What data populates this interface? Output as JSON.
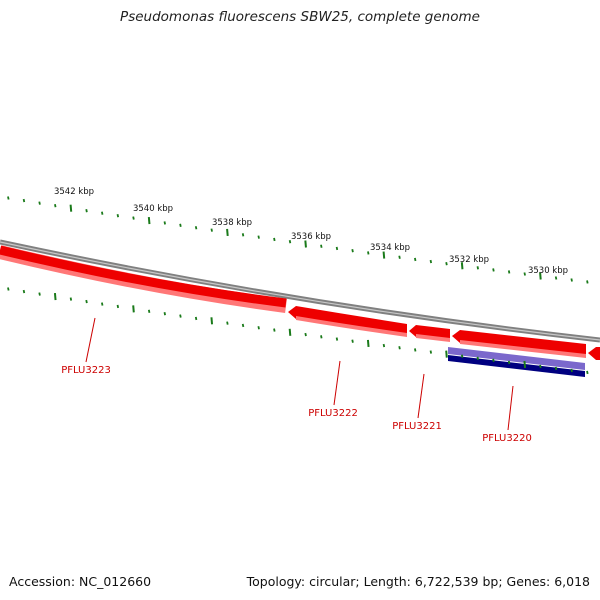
{
  "header": {
    "title": "Pseudomonas fluorescens SBW25, complete genome"
  },
  "footer": {
    "accession": "Accession: NC_012660",
    "topology": "Topology: circular; Length: 6,722,539 bp; Genes: 6,018"
  },
  "ruler": {
    "labels": [
      "3542 kbp",
      "3540 kbp",
      "3538 kbp",
      "3536 kbp",
      "3534 kbp",
      "3532 kbp",
      "3530 kbp"
    ]
  },
  "genes": [
    {
      "name": "PFLU3223"
    },
    {
      "name": "PFLU3222"
    },
    {
      "name": "PFLU3221"
    },
    {
      "name": "PFLU3220"
    }
  ],
  "colors": {
    "gene": "#ee0000",
    "gene_light": "#ff7777",
    "blue_dark": "#000080",
    "blue_light": "#7b68cc",
    "tick": "#1a7a1a",
    "backbone": "#808080"
  }
}
